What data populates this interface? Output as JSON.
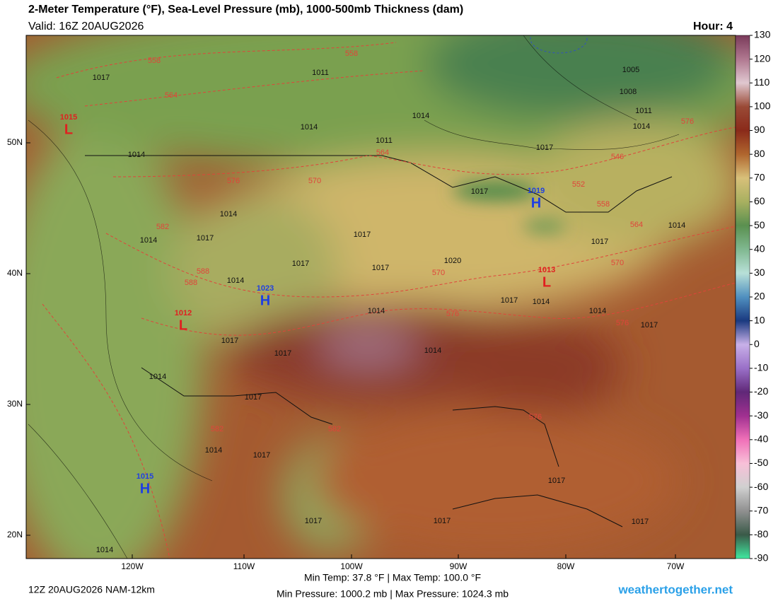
{
  "header": {
    "title": "2-Meter Temperature (°F), Sea-Level Pressure (mb), 1000-500mb Thickness (dam)",
    "valid": "Valid: 16Z 20AUG2026",
    "hour": "Hour: 4"
  },
  "map": {
    "lat_labels": [
      "50N",
      "40N",
      "30N",
      "20N"
    ],
    "lon_labels": [
      "120W",
      "110W",
      "100W",
      "90W",
      "80W",
      "70W"
    ],
    "isobar_labels": [
      "1017",
      "1011",
      "1014",
      "1014",
      "1011",
      "1005",
      "1008",
      "1011",
      "1014",
      "1014",
      "1017",
      "1017",
      "1017",
      "1014",
      "1014",
      "1017",
      "1014",
      "1017",
      "1017",
      "1020",
      "1017",
      "1014",
      "1017",
      "1017",
      "1014",
      "1014",
      "1017",
      "1017",
      "1017",
      "1014",
      "1017",
      "1017",
      "1014",
      "1014",
      "1017",
      "1014",
      "1017",
      "1017",
      "1014"
    ],
    "thickness_labels": [
      "558",
      "558",
      "564",
      "564",
      "576",
      "570",
      "582",
      "588",
      "576",
      "570",
      "576",
      "552",
      "546",
      "558",
      "564",
      "570",
      "576",
      "582",
      "582",
      "576",
      "588"
    ],
    "centers": [
      {
        "symbol": "H",
        "value": "1023"
      },
      {
        "symbol": "H",
        "value": "1019"
      },
      {
        "symbol": "H",
        "value": "1015"
      },
      {
        "symbol": "L",
        "value": "1012"
      },
      {
        "symbol": "L",
        "value": "1013"
      },
      {
        "symbol": "L",
        "value": "1015"
      }
    ]
  },
  "colorbar": {
    "ticks": [
      130,
      120,
      110,
      100,
      90,
      80,
      70,
      60,
      50,
      40,
      30,
      20,
      10,
      0,
      -10,
      -20,
      -30,
      -40,
      -50,
      -60,
      -70,
      -80,
      -90
    ],
    "colors": [
      "#7a3a5a",
      "#b07890",
      "#e0c8d0",
      "#9a4a36",
      "#8a2a1a",
      "#b0662e",
      "#d8c07a",
      "#a8b060",
      "#5a9050",
      "#80b890",
      "#b8e0d8",
      "#5090c0",
      "#1a3a80",
      "#c8b0e8",
      "#9a70c8",
      "#602878",
      "#a03090",
      "#f070b8",
      "#f8c0d8",
      "#d0d0d0",
      "#909090",
      "#3a5a48",
      "#40e8a0"
    ]
  },
  "footer": {
    "run": "12Z 20AUG2026 NAM-12km",
    "temp_range": "Min Temp:  37.8 °F | Max Temp: 100.0 °F",
    "pressure_range": "Min Pressure: 1000.2 mb | Max Pressure: 1024.3 mb",
    "site": "weathertogether.net"
  }
}
